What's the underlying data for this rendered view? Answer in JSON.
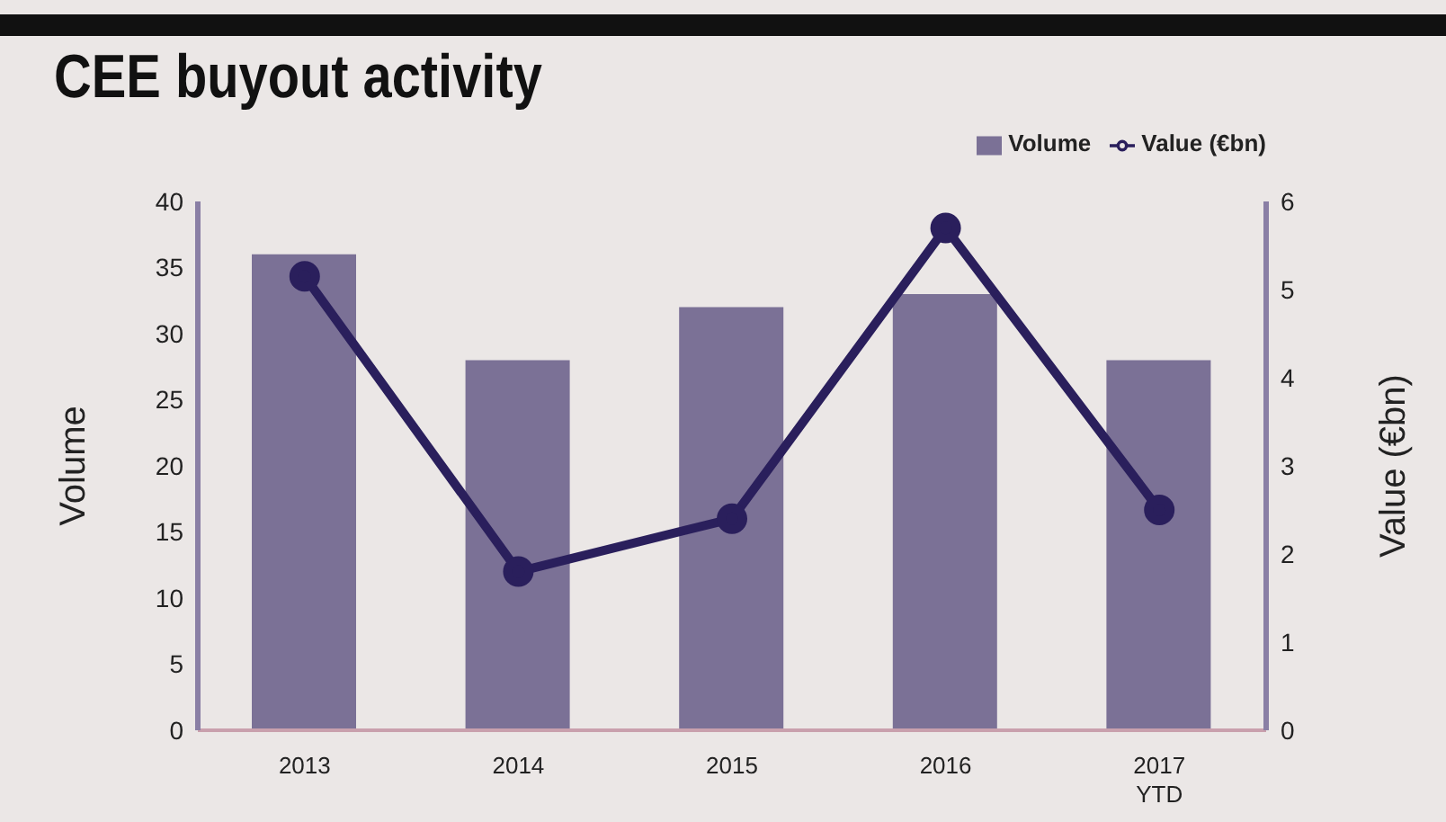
{
  "chart_data": {
    "type": "bar",
    "title": "CEE buyout activity",
    "ylabel": "Volume",
    "y2label": "Value (€bn)",
    "categories": [
      "2013",
      "2014",
      "2015",
      "2016",
      "2017\nYTD"
    ],
    "series": [
      {
        "name": "Volume",
        "color": "#7b7196",
        "values": [
          36,
          28,
          32,
          33,
          28
        ]
      },
      {
        "name": "Value (€bn)",
        "type": "line",
        "axis": "y2",
        "color": "#2a1f5c",
        "values": [
          5.15,
          1.8,
          2.4,
          5.7,
          2.5
        ]
      }
    ],
    "ylim": [
      0,
      40
    ],
    "yticks": [
      0,
      5,
      10,
      15,
      20,
      25,
      30,
      35,
      40
    ],
    "y2lim": [
      0,
      6
    ],
    "y2ticks": [
      0,
      1,
      2,
      3,
      4,
      5,
      6
    ],
    "grid": false,
    "legend": "top right",
    "marker": "circle",
    "line_style": "solid"
  }
}
